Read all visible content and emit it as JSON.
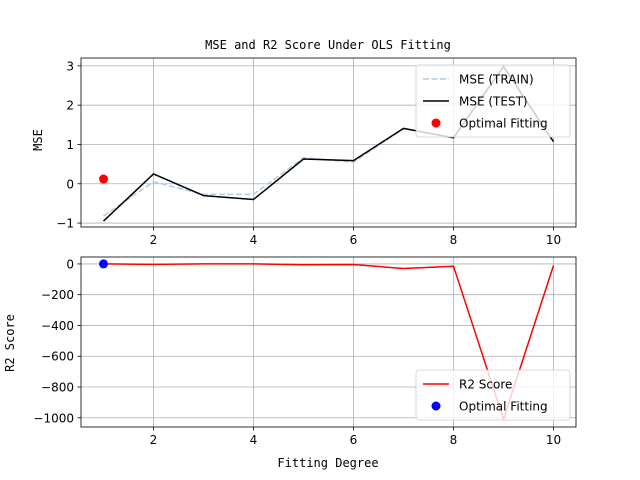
{
  "chart_data": [
    {
      "type": "line",
      "title": "MSE and R2 Score Under OLS Fitting",
      "xlabel": "",
      "ylabel": "MSE",
      "xlim": [
        0.55,
        10.45
      ],
      "ylim": [
        -1.1,
        3.2
      ],
      "xticks": [
        2,
        4,
        6,
        8,
        10
      ],
      "yticks": [
        -1,
        0,
        1,
        2,
        3
      ],
      "grid": true,
      "legend_position": "top-right",
      "x": [
        1,
        2,
        3,
        4,
        5,
        6,
        7,
        8,
        9,
        10
      ],
      "series": [
        {
          "name": "MSE (TRAIN)",
          "style": "dashed",
          "color": "#aecbe8",
          "values": [
            -0.82,
            0.05,
            -0.27,
            -0.27,
            0.66,
            0.55,
            1.4,
            1.18,
            2.98,
            1.07
          ]
        },
        {
          "name": "MSE (TEST)",
          "style": "solid",
          "color": "#000000",
          "values": [
            -0.95,
            0.25,
            -0.3,
            -0.4,
            0.63,
            0.59,
            1.41,
            1.17,
            2.98,
            1.07
          ]
        }
      ],
      "points": [
        {
          "name": "Optimal Fitting",
          "color": "#ff0000",
          "x": 1,
          "y": 0.12
        }
      ]
    },
    {
      "type": "line",
      "title": "",
      "xlabel": "Fitting Degree",
      "ylabel": "R2 Score",
      "xlim": [
        0.55,
        10.45
      ],
      "ylim": [
        -1060,
        45
      ],
      "xticks": [
        2,
        4,
        6,
        8,
        10
      ],
      "yticks": [
        0,
        -200,
        -400,
        -600,
        -800,
        -1000
      ],
      "grid": true,
      "legend_position": "bottom-right",
      "x": [
        1,
        2,
        3,
        4,
        5,
        6,
        7,
        8,
        9,
        10
      ],
      "series": [
        {
          "name": "R2 Score",
          "style": "solid",
          "color": "#ff0000",
          "values": [
            0,
            -3,
            0,
            0,
            -5,
            -4,
            -30,
            -15,
            -1010,
            -10
          ]
        }
      ],
      "points": [
        {
          "name": "Optimal Fitting",
          "color": "#0000ff",
          "x": 1,
          "y": 0
        }
      ]
    }
  ]
}
